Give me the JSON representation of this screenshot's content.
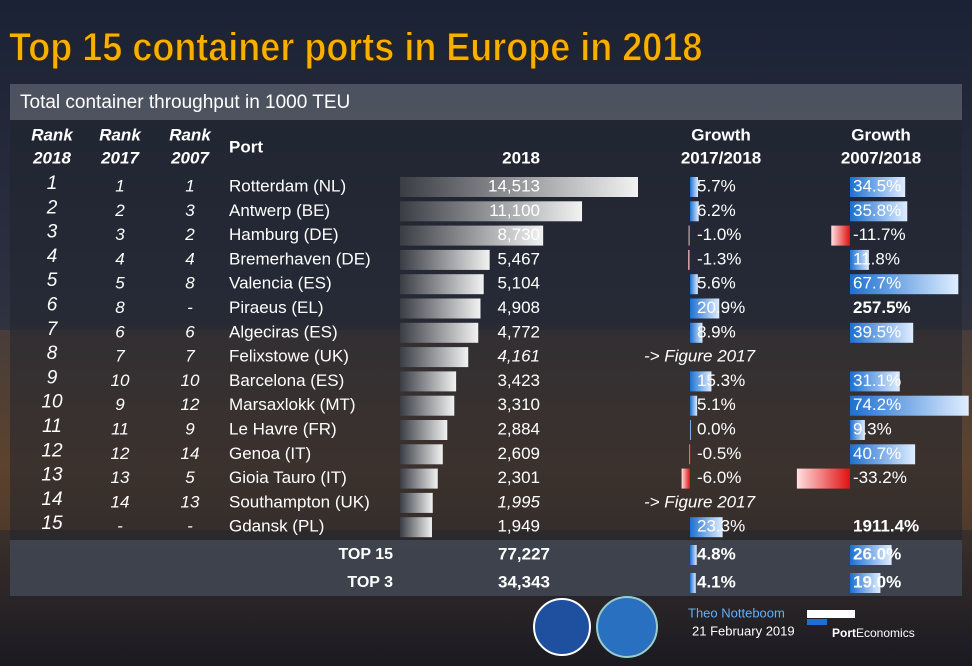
{
  "title": "Top 15 container ports in Europe in 2018",
  "subtitle": "Total container throughput in 1000 TEU",
  "table": {
    "headers": {
      "rank_2018": [
        "Rank",
        "2018"
      ],
      "rank_2017": [
        "Rank",
        "2017"
      ],
      "rank_2007": [
        "Rank",
        "2007"
      ],
      "port": "Port",
      "teu": "2018",
      "growth_1": [
        "Growth",
        "2017/2018"
      ],
      "growth_2": [
        "Growth",
        "2007/2018"
      ]
    },
    "rows": [
      {
        "rank_2018": "1",
        "rank_2017": "1",
        "rank_2007": "1",
        "port": "Rotterdam (NL)",
        "teu": {
          "value": 14513,
          "label": "14,513"
        },
        "growth_1": {
          "value": 5.7,
          "label": "5.7%"
        },
        "growth_2": {
          "value": 34.5,
          "label": "34.5%"
        }
      },
      {
        "rank_2018": "2",
        "rank_2017": "2",
        "rank_2007": "3",
        "port": "Antwerp (BE)",
        "teu": {
          "value": 11100,
          "label": "11,100"
        },
        "growth_1": {
          "value": 6.2,
          "label": "6.2%"
        },
        "growth_2": {
          "value": 35.8,
          "label": "35.8%"
        }
      },
      {
        "rank_2018": "3",
        "rank_2017": "3",
        "rank_2007": "2",
        "port": "Hamburg (DE)",
        "teu": {
          "value": 8730,
          "label": "8,730"
        },
        "growth_1": {
          "value": -1.0,
          "label": "-1.0%"
        },
        "growth_2": {
          "value": -11.7,
          "label": "-11.7%"
        }
      },
      {
        "rank_2018": "4",
        "rank_2017": "4",
        "rank_2007": "4",
        "port": "Bremerhaven (DE)",
        "teu": {
          "value": 5467,
          "label": "5,467"
        },
        "growth_1": {
          "value": -1.3,
          "label": "-1.3%"
        },
        "growth_2": {
          "value": 11.8,
          "label": "11.8%"
        }
      },
      {
        "rank_2018": "5",
        "rank_2017": "5",
        "rank_2007": "8",
        "port": "Valencia (ES)",
        "teu": {
          "value": 5104,
          "label": "5,104"
        },
        "growth_1": {
          "value": 5.6,
          "label": "5.6%"
        },
        "growth_2": {
          "value": 67.7,
          "label": "67.7%"
        }
      },
      {
        "rank_2018": "6",
        "rank_2017": "8",
        "rank_2007": "-",
        "port": "Piraeus (EL)",
        "teu": {
          "value": 4908,
          "label": "4,908"
        },
        "growth_1": {
          "value": 20.9,
          "label": "20.9%"
        },
        "growth_2": {
          "value": 257.5,
          "label": "257.5%",
          "bold": true
        }
      },
      {
        "rank_2018": "7",
        "rank_2017": "6",
        "rank_2007": "6",
        "port": "Algeciras (ES)",
        "teu": {
          "value": 4772,
          "label": "4,772"
        },
        "growth_1": {
          "value": 8.9,
          "label": "8.9%"
        },
        "growth_2": {
          "value": 39.5,
          "label": "39.5%"
        }
      },
      {
        "rank_2018": "8",
        "rank_2017": "7",
        "rank_2007": "7",
        "port": "Felixstowe (UK)",
        "teu": {
          "value": 4161,
          "label": "4,161",
          "italic": true
        },
        "note": "-> Figure 2017"
      },
      {
        "rank_2018": "9",
        "rank_2017": "10",
        "rank_2007": "10",
        "port": "Barcelona (ES)",
        "teu": {
          "value": 3423,
          "label": "3,423"
        },
        "growth_1": {
          "value": 15.3,
          "label": "15.3%"
        },
        "growth_2": {
          "value": 31.1,
          "label": "31.1%"
        }
      },
      {
        "rank_2018": "10",
        "rank_2017": "9",
        "rank_2007": "12",
        "port": "Marsaxlokk (MT)",
        "teu": {
          "value": 3310,
          "label": "3,310"
        },
        "growth_1": {
          "value": 5.1,
          "label": "5.1%"
        },
        "growth_2": {
          "value": 74.2,
          "label": "74.2%"
        }
      },
      {
        "rank_2018": "11",
        "rank_2017": "11",
        "rank_2007": "9",
        "port": "Le Havre (FR)",
        "teu": {
          "value": 2884,
          "label": "2,884"
        },
        "growth_1": {
          "value": 0.0,
          "label": "0.0%"
        },
        "growth_2": {
          "value": 9.3,
          "label": "9.3%"
        }
      },
      {
        "rank_2018": "12",
        "rank_2017": "12",
        "rank_2007": "14",
        "port": "Genoa (IT)",
        "teu": {
          "value": 2609,
          "label": "2,609"
        },
        "growth_1": {
          "value": -0.5,
          "label": "-0.5%"
        },
        "growth_2": {
          "value": 40.7,
          "label": "40.7%"
        }
      },
      {
        "rank_2018": "13",
        "rank_2017": "13",
        "rank_2007": "5",
        "port": "Gioia Tauro (IT)",
        "teu": {
          "value": 2301,
          "label": "2,301"
        },
        "growth_1": {
          "value": -6.0,
          "label": "-6.0%"
        },
        "growth_2": {
          "value": -33.2,
          "label": "-33.2%"
        }
      },
      {
        "rank_2018": "14",
        "rank_2017": "14",
        "rank_2007": "13",
        "port": "Southampton (UK)",
        "teu": {
          "value": 1995,
          "label": "1,995",
          "italic": true
        },
        "note": "-> Figure 2017"
      },
      {
        "rank_2018": "15",
        "rank_2017": "-",
        "rank_2007": "-",
        "port": "Gdansk (PL)",
        "teu": {
          "value": 1949,
          "label": "1,949"
        },
        "growth_1": {
          "value": 23.3,
          "label": "23.3%"
        },
        "growth_2": {
          "value": 1911.4,
          "label": "1911.4%",
          "bold": true
        }
      }
    ],
    "totals": [
      {
        "name": "TOP 15",
        "teu": {
          "value": 77227,
          "label": "77,227"
        },
        "growth_1": {
          "value": 4.8,
          "label": "4.8%"
        },
        "growth_2": {
          "value": 26.0,
          "label": "26.0%"
        }
      },
      {
        "name": "TOP 3",
        "teu": {
          "value": 34343,
          "label": "34,343"
        },
        "growth_1": {
          "value": 4.1,
          "label": "4.1%"
        },
        "growth_2": {
          "value": 19.0,
          "label": "19.0%"
        }
      }
    ]
  },
  "footer": {
    "author": "Theo Notteboom",
    "date": "21 February 2019",
    "brand_bold": "Port",
    "brand": "Economics"
  }
}
